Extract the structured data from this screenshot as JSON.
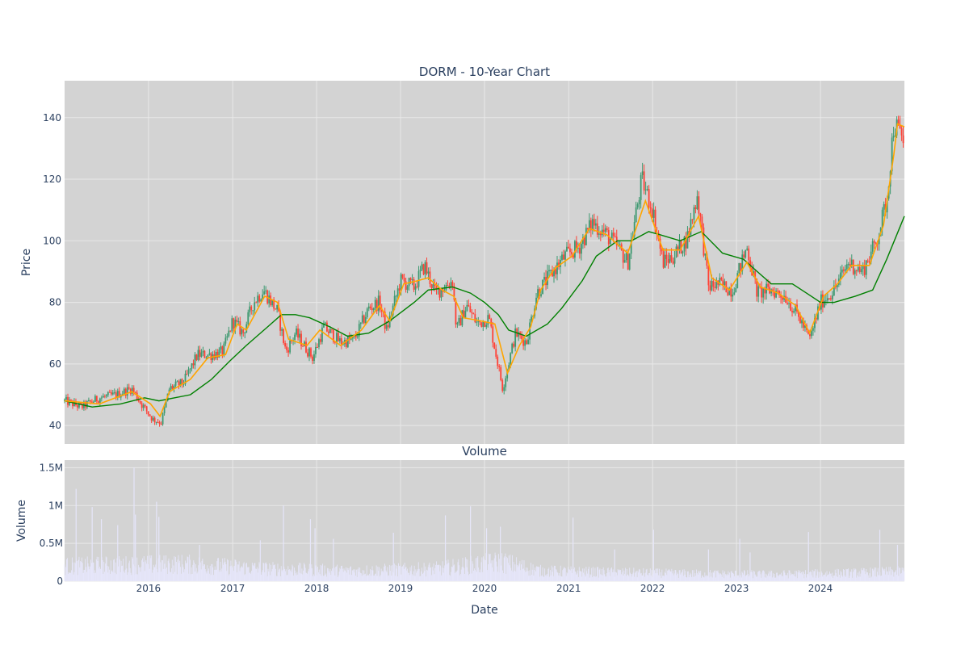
{
  "chart_data": [
    {
      "type": "candlestick",
      "title": "DORM - 10-Year Chart",
      "xlabel": "",
      "ylabel": "Price",
      "ylim": [
        34,
        152
      ],
      "x_range": [
        "2015-01-01",
        "2024-12-31"
      ],
      "yticks": [
        40,
        60,
        80,
        100,
        120,
        140
      ],
      "grid": true,
      "colors": {
        "up": "#3d9970",
        "down": "#ff4136",
        "ma_short": "#ffa500",
        "ma_long": "#008000",
        "plot_bg": "#d3d3d3",
        "grid": "#e8e8e8"
      },
      "series": [
        {
          "key": "close",
          "points": [
            [
              "2015-01-01",
              48
            ],
            [
              "2015-03-15",
              46
            ],
            [
              "2015-06-01",
              49
            ],
            [
              "2015-08-15",
              50
            ],
            [
              "2015-10-20",
              52
            ],
            [
              "2015-12-01",
              47
            ],
            [
              "2016-01-20",
              42
            ],
            [
              "2016-02-25",
              41
            ],
            [
              "2016-04-01",
              52
            ],
            [
              "2016-06-01",
              54
            ],
            [
              "2016-08-01",
              63
            ],
            [
              "2016-10-01",
              63
            ],
            [
              "2016-11-20",
              64
            ],
            [
              "2017-01-01",
              74
            ],
            [
              "2017-02-15",
              70
            ],
            [
              "2017-04-01",
              80
            ],
            [
              "2017-05-15",
              84
            ],
            [
              "2017-07-15",
              77
            ],
            [
              "2017-08-20",
              64
            ],
            [
              "2017-10-01",
              70
            ],
            [
              "2017-12-15",
              62
            ],
            [
              "2018-02-01",
              72
            ],
            [
              "2018-04-15",
              67
            ],
            [
              "2018-06-15",
              68
            ],
            [
              "2018-08-15",
              78
            ],
            [
              "2018-10-01",
              80
            ],
            [
              "2018-11-01",
              71
            ],
            [
              "2019-01-01",
              87
            ],
            [
              "2019-03-01",
              85
            ],
            [
              "2019-04-15",
              92
            ],
            [
              "2019-06-01",
              83
            ],
            [
              "2019-08-15",
              87
            ],
            [
              "2019-09-01",
              71
            ],
            [
              "2019-10-15",
              79
            ],
            [
              "2019-12-01",
              73
            ],
            [
              "2020-01-20",
              75
            ],
            [
              "2020-03-20",
              52
            ],
            [
              "2020-05-15",
              70
            ],
            [
              "2020-07-01",
              67
            ],
            [
              "2020-08-15",
              83
            ],
            [
              "2020-10-15",
              89
            ],
            [
              "2020-12-15",
              95
            ],
            [
              "2021-02-15",
              98
            ],
            [
              "2021-04-15",
              106
            ],
            [
              "2021-06-15",
              102
            ],
            [
              "2021-08-01",
              98
            ],
            [
              "2021-09-15",
              93
            ],
            [
              "2021-11-15",
              120
            ],
            [
              "2022-01-01",
              110
            ],
            [
              "2022-02-15",
              93
            ],
            [
              "2022-04-01",
              95
            ],
            [
              "2022-06-01",
              101
            ],
            [
              "2022-07-15",
              115
            ],
            [
              "2022-09-01",
              85
            ],
            [
              "2022-10-15",
              86
            ],
            [
              "2022-12-15",
              84
            ],
            [
              "2023-02-15",
              98
            ],
            [
              "2023-04-01",
              83
            ],
            [
              "2023-06-01",
              84
            ],
            [
              "2023-08-01",
              82
            ],
            [
              "2023-10-01",
              75
            ],
            [
              "2023-11-15",
              68
            ],
            [
              "2024-01-01",
              80
            ],
            [
              "2024-03-01",
              84
            ],
            [
              "2024-05-01",
              93
            ],
            [
              "2024-07-01",
              90
            ],
            [
              "2024-09-01",
              100
            ],
            [
              "2024-10-15",
              113
            ],
            [
              "2024-11-15",
              138
            ],
            [
              "2024-12-31",
              132
            ]
          ]
        },
        {
          "key": "ma_short",
          "points": [
            [
              "2015-01-01",
              48
            ],
            [
              "2015-06-01",
              47
            ],
            [
              "2015-10-20",
              51
            ],
            [
              "2016-01-10",
              47
            ],
            [
              "2016-02-20",
              43
            ],
            [
              "2016-04-01",
              51
            ],
            [
              "2016-07-01",
              55
            ],
            [
              "2016-09-15",
              62
            ],
            [
              "2016-12-01",
              63
            ],
            [
              "2017-01-20",
              73
            ],
            [
              "2017-03-01",
              71
            ],
            [
              "2017-05-20",
              82
            ],
            [
              "2017-07-15",
              80
            ],
            [
              "2017-09-01",
              68
            ],
            [
              "2017-11-20",
              66
            ],
            [
              "2018-01-15",
              71
            ],
            [
              "2018-04-15",
              66
            ],
            [
              "2018-07-15",
              71
            ],
            [
              "2018-10-01",
              79
            ],
            [
              "2018-11-15",
              74
            ],
            [
              "2019-01-15",
              86
            ],
            [
              "2019-03-15",
              87
            ],
            [
              "2019-05-01",
              88
            ],
            [
              "2019-07-01",
              84
            ],
            [
              "2019-08-20",
              82
            ],
            [
              "2019-10-01",
              75
            ],
            [
              "2019-12-15",
              74
            ],
            [
              "2020-02-15",
              73
            ],
            [
              "2020-04-10",
              57
            ],
            [
              "2020-06-01",
              66
            ],
            [
              "2020-07-20",
              72
            ],
            [
              "2020-09-01",
              84
            ],
            [
              "2020-11-01",
              91
            ],
            [
              "2021-01-15",
              95
            ],
            [
              "2021-04-01",
              104
            ],
            [
              "2021-06-15",
              102
            ],
            [
              "2021-09-15",
              96
            ],
            [
              "2021-12-01",
              113
            ],
            [
              "2022-02-15",
              97
            ],
            [
              "2022-05-01",
              97
            ],
            [
              "2022-07-20",
              108
            ],
            [
              "2022-09-15",
              88
            ],
            [
              "2022-12-01",
              84
            ],
            [
              "2023-02-15",
              93
            ],
            [
              "2023-04-15",
              85
            ],
            [
              "2023-07-01",
              83
            ],
            [
              "2023-09-15",
              79
            ],
            [
              "2023-11-15",
              70
            ],
            [
              "2024-01-15",
              82
            ],
            [
              "2024-03-15",
              86
            ],
            [
              "2024-05-15",
              92
            ],
            [
              "2024-08-01",
              92
            ],
            [
              "2024-10-01",
              105
            ],
            [
              "2024-11-15",
              128
            ],
            [
              "2024-12-01",
              138
            ],
            [
              "2024-12-31",
              137
            ]
          ]
        },
        {
          "key": "ma_long",
          "points": [
            [
              "2015-01-01",
              48
            ],
            [
              "2015-05-01",
              46
            ],
            [
              "2015-09-01",
              47
            ],
            [
              "2015-12-15",
              49
            ],
            [
              "2016-02-15",
              48
            ],
            [
              "2016-07-01",
              50
            ],
            [
              "2016-10-01",
              55
            ],
            [
              "2016-12-20",
              61
            ],
            [
              "2017-03-01",
              66
            ],
            [
              "2017-06-01",
              72
            ],
            [
              "2017-08-01",
              76
            ],
            [
              "2017-10-01",
              76
            ],
            [
              "2017-12-01",
              75
            ],
            [
              "2018-03-01",
              72
            ],
            [
              "2018-05-15",
              69
            ],
            [
              "2018-08-15",
              70
            ],
            [
              "2018-11-15",
              74
            ],
            [
              "2019-03-01",
              80
            ],
            [
              "2019-05-01",
              84
            ],
            [
              "2019-08-15",
              85
            ],
            [
              "2019-11-01",
              83
            ],
            [
              "2020-01-01",
              80
            ],
            [
              "2020-03-01",
              76
            ],
            [
              "2020-04-15",
              71
            ],
            [
              "2020-07-01",
              69
            ],
            [
              "2020-10-01",
              73
            ],
            [
              "2020-12-01",
              78
            ],
            [
              "2021-03-01",
              87
            ],
            [
              "2021-05-01",
              95
            ],
            [
              "2021-08-01",
              100
            ],
            [
              "2021-10-01",
              100
            ],
            [
              "2021-12-15",
              103
            ],
            [
              "2022-02-01",
              102
            ],
            [
              "2022-05-01",
              100
            ],
            [
              "2022-08-01",
              103
            ],
            [
              "2022-11-01",
              96
            ],
            [
              "2023-02-01",
              94
            ],
            [
              "2023-04-01",
              90
            ],
            [
              "2023-06-01",
              86
            ],
            [
              "2023-09-01",
              86
            ],
            [
              "2023-11-01",
              83
            ],
            [
              "2024-01-01",
              80
            ],
            [
              "2024-03-01",
              80
            ],
            [
              "2024-06-01",
              82
            ],
            [
              "2024-08-15",
              84
            ],
            [
              "2024-10-15",
              94
            ],
            [
              "2024-12-31",
              108
            ]
          ]
        }
      ]
    },
    {
      "type": "bar",
      "title": "Volume",
      "xlabel": "Date",
      "ylabel": "Volume",
      "ylim": [
        0,
        1600000
      ],
      "x_range": [
        "2015-01-01",
        "2024-12-31"
      ],
      "xticks": [
        "2016",
        "2017",
        "2018",
        "2019",
        "2020",
        "2021",
        "2022",
        "2023",
        "2024"
      ],
      "yticks": [
        0,
        500000,
        1000000,
        1500000
      ],
      "ytick_labels": [
        "0",
        "0.5M",
        "1M",
        "1.5M"
      ],
      "colors": {
        "bar": "#e6e6fa",
        "plot_bg": "#d3d3d3",
        "grid": "#e8e8e8"
      },
      "baseline": [
        [
          "2015-01-01",
          220000
        ],
        [
          "2016-06-01",
          250000
        ],
        [
          "2017-06-01",
          180000
        ],
        [
          "2018-06-01",
          150000
        ],
        [
          "2019-06-01",
          180000
        ],
        [
          "2020-03-15",
          280000
        ],
        [
          "2020-09-01",
          150000
        ],
        [
          "2021-06-01",
          130000
        ],
        [
          "2022-06-01",
          110000
        ],
        [
          "2023-06-01",
          100000
        ],
        [
          "2024-06-01",
          120000
        ],
        [
          "2024-12-31",
          140000
        ]
      ],
      "spikes": [
        [
          "2015-02-20",
          1220000
        ],
        [
          "2015-05-01",
          980000
        ],
        [
          "2015-06-10",
          820000
        ],
        [
          "2015-08-20",
          740000
        ],
        [
          "2015-10-30",
          1500000
        ],
        [
          "2015-11-05",
          880000
        ],
        [
          "2016-02-05",
          1050000
        ],
        [
          "2016-02-15",
          850000
        ],
        [
          "2016-08-10",
          480000
        ],
        [
          "2017-05-01",
          540000
        ],
        [
          "2017-08-10",
          1000000
        ],
        [
          "2017-12-05",
          820000
        ],
        [
          "2017-12-25",
          700000
        ],
        [
          "2018-03-15",
          560000
        ],
        [
          "2018-12-01",
          640000
        ],
        [
          "2019-07-15",
          870000
        ],
        [
          "2019-11-01",
          990000
        ],
        [
          "2020-01-10",
          700000
        ],
        [
          "2020-03-10",
          720000
        ],
        [
          "2021-01-20",
          840000
        ],
        [
          "2021-07-20",
          420000
        ],
        [
          "2022-01-05",
          680000
        ],
        [
          "2022-09-01",
          420000
        ],
        [
          "2023-01-15",
          560000
        ],
        [
          "2023-03-01",
          380000
        ],
        [
          "2023-11-10",
          650000
        ],
        [
          "2024-09-15",
          680000
        ],
        [
          "2024-12-01",
          480000
        ]
      ]
    }
  ]
}
